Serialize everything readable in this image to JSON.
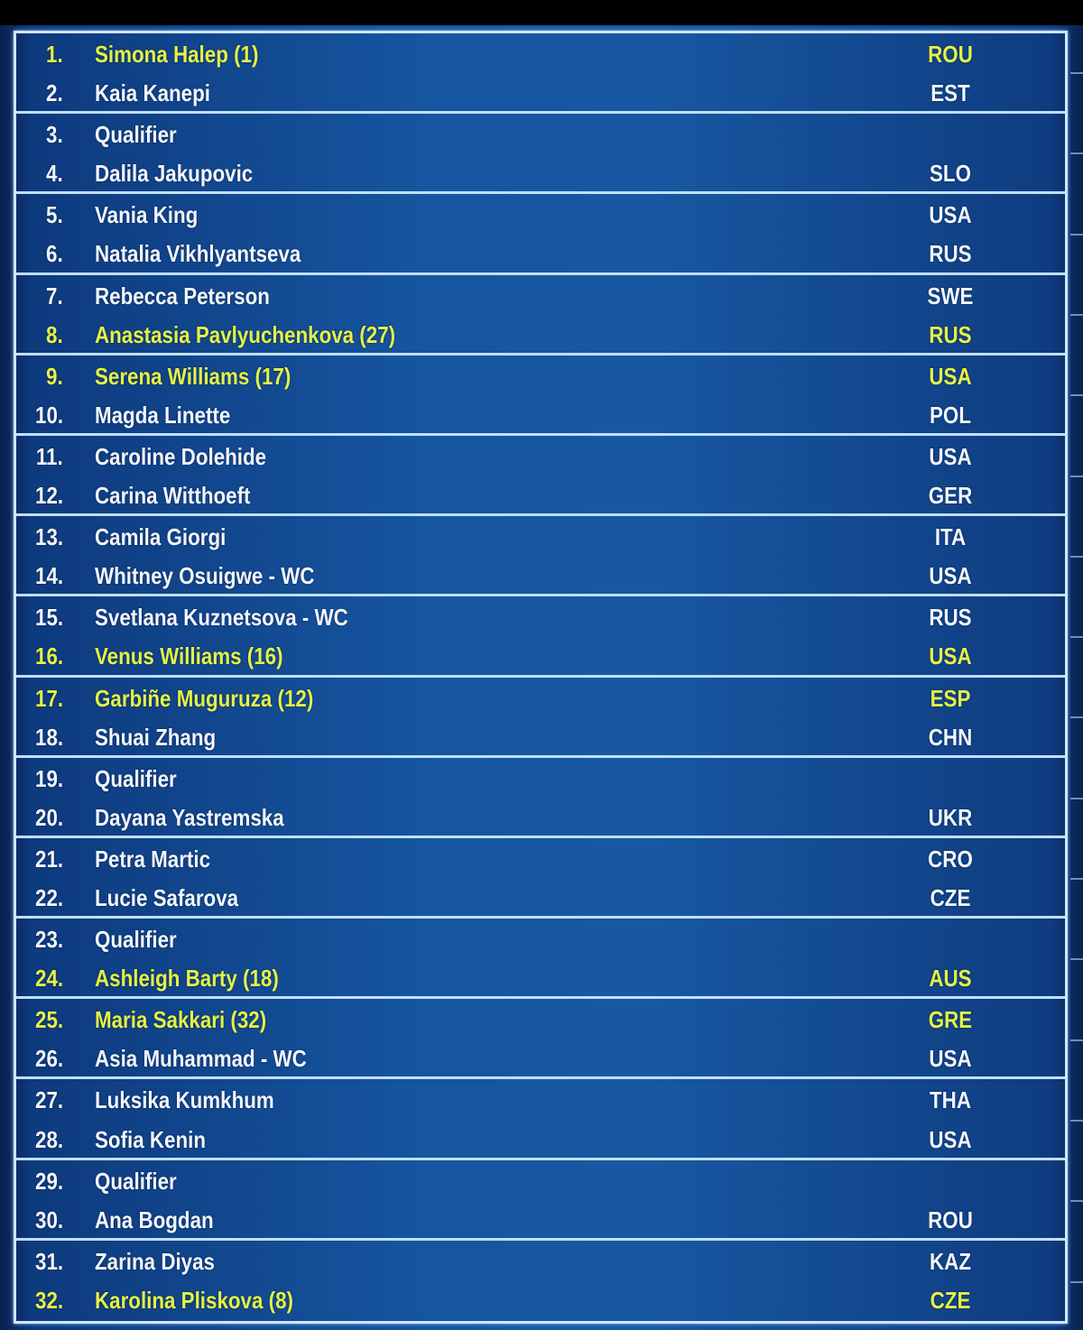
{
  "colors": {
    "seeded_text": "#e4f246",
    "normal_text": "#f2f6ff",
    "background": "#1656a0",
    "divider": "#bfe0ff"
  },
  "draw": [
    {
      "num": "1.",
      "name": "Simona Halep (1)",
      "country": "ROU",
      "seeded": true
    },
    {
      "num": "2.",
      "name": "Kaia Kanepi",
      "country": "EST",
      "seeded": false
    },
    {
      "num": "3.",
      "name": "Qualifier",
      "country": "",
      "seeded": false
    },
    {
      "num": "4.",
      "name": "Dalila Jakupovic",
      "country": "SLO",
      "seeded": false
    },
    {
      "num": "5.",
      "name": "Vania King",
      "country": "USA",
      "seeded": false
    },
    {
      "num": "6.",
      "name": "Natalia Vikhlyantseva",
      "country": "RUS",
      "seeded": false
    },
    {
      "num": "7.",
      "name": "Rebecca Peterson",
      "country": "SWE",
      "seeded": false
    },
    {
      "num": "8.",
      "name": "Anastasia Pavlyuchenkova (27)",
      "country": "RUS",
      "seeded": true
    },
    {
      "num": "9.",
      "name": "Serena Williams (17)",
      "country": "USA",
      "seeded": true
    },
    {
      "num": "10.",
      "name": "Magda Linette",
      "country": "POL",
      "seeded": false
    },
    {
      "num": "11.",
      "name": "Caroline Dolehide",
      "country": "USA",
      "seeded": false
    },
    {
      "num": "12.",
      "name": "Carina Witthoeft",
      "country": "GER",
      "seeded": false
    },
    {
      "num": "13.",
      "name": "Camila Giorgi",
      "country": "ITA",
      "seeded": false
    },
    {
      "num": "14.",
      "name": "Whitney Osuigwe - WC",
      "country": "USA",
      "seeded": false
    },
    {
      "num": "15.",
      "name": "Svetlana Kuznetsova - WC",
      "country": "RUS",
      "seeded": false
    },
    {
      "num": "16.",
      "name": "Venus Williams (16)",
      "country": "USA",
      "seeded": true
    },
    {
      "num": "17.",
      "name": "Garbiñe Muguruza (12)",
      "country": "ESP",
      "seeded": true
    },
    {
      "num": "18.",
      "name": "Shuai Zhang",
      "country": "CHN",
      "seeded": false
    },
    {
      "num": "19.",
      "name": "Qualifier",
      "country": "",
      "seeded": false
    },
    {
      "num": "20.",
      "name": "Dayana Yastremska",
      "country": "UKR",
      "seeded": false
    },
    {
      "num": "21.",
      "name": "Petra Martic",
      "country": "CRO",
      "seeded": false
    },
    {
      "num": "22.",
      "name": "Lucie Safarova",
      "country": "CZE",
      "seeded": false
    },
    {
      "num": "23.",
      "name": "Qualifier",
      "country": "",
      "seeded": false
    },
    {
      "num": "24.",
      "name": "Ashleigh Barty (18)",
      "country": "AUS",
      "seeded": true
    },
    {
      "num": "25.",
      "name": "Maria Sakkari (32)",
      "country": "GRE",
      "seeded": true
    },
    {
      "num": "26.",
      "name": "Asia Muhammad - WC",
      "country": "USA",
      "seeded": false
    },
    {
      "num": "27.",
      "name": "Luksika Kumkhum",
      "country": "THA",
      "seeded": false
    },
    {
      "num": "28.",
      "name": "Sofia Kenin",
      "country": "USA",
      "seeded": false
    },
    {
      "num": "29.",
      "name": "Qualifier",
      "country": "",
      "seeded": false
    },
    {
      "num": "30.",
      "name": "Ana Bogdan",
      "country": "ROU",
      "seeded": false
    },
    {
      "num": "31.",
      "name": "Zarina Diyas",
      "country": "KAZ",
      "seeded": false
    },
    {
      "num": "32.",
      "name": "Karolina Pliskova (8)",
      "country": "CZE",
      "seeded": true
    }
  ]
}
